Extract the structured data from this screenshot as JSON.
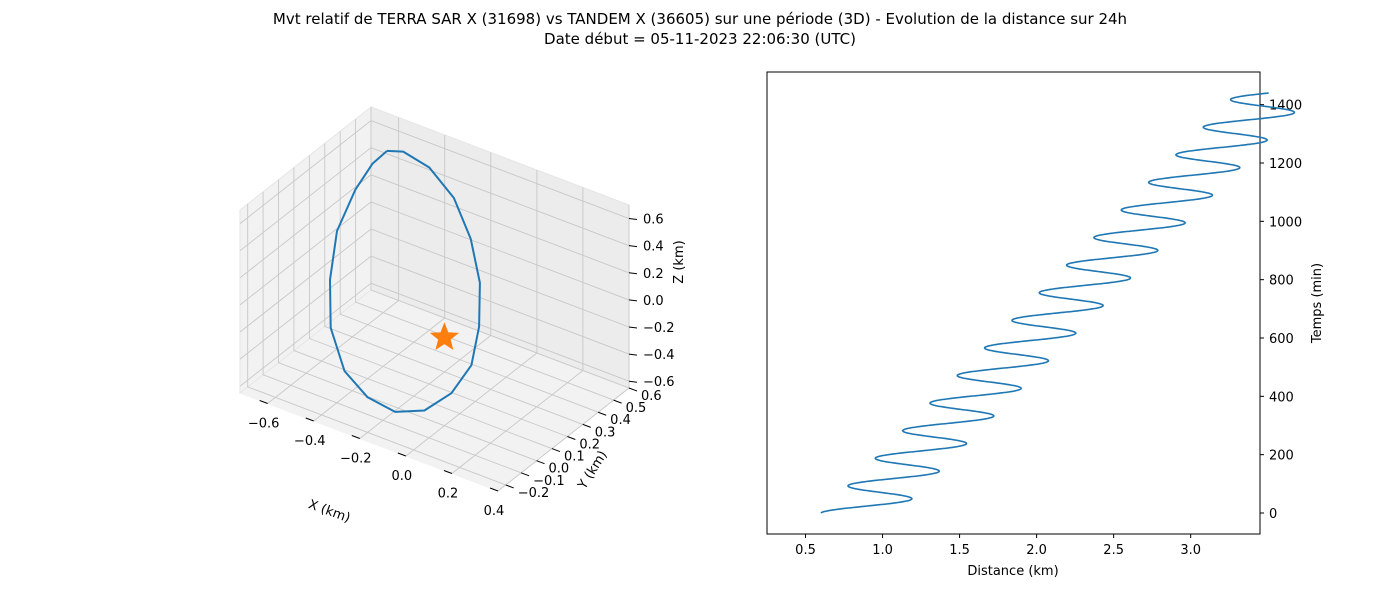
{
  "figure": {
    "title": "Mvt relatif de TERRA SAR X (31698) vs TANDEM X (36605) sur une période (3D) - Evolution de la distance sur 24h",
    "subtitle": "Date début = 05-11-2023 22:06:30 (UTC)"
  },
  "chart_data": [
    {
      "type": "line3d",
      "xlabel": "X (km)",
      "ylabel": "Y (km)",
      "zlabel": "Z (km)",
      "xlim": [
        -0.72,
        0.4
      ],
      "ylim": [
        -0.25,
        0.6
      ],
      "zlim": [
        -0.65,
        0.7
      ],
      "x_ticks": [
        "−0.6",
        "−0.4",
        "−0.2",
        "0.0",
        "0.2",
        "0.4"
      ],
      "y_ticks": [
        "−0.2",
        "−0.1",
        "0.0",
        "0.1",
        "0.2",
        "0.3",
        "0.4",
        "0.5",
        "0.6"
      ],
      "z_ticks": [
        "−0.6",
        "−0.4",
        "−0.2",
        "0.0",
        "0.2",
        "0.4",
        "0.6"
      ],
      "grid": true,
      "series": [
        {
          "color": "#1f77b4",
          "orbit_points": [
            [
              -0.55,
              0.45,
              0.62
            ],
            [
              -0.5,
              0.48,
              0.62
            ],
            [
              -0.4,
              0.5,
              0.55
            ],
            [
              -0.28,
              0.48,
              0.42
            ],
            [
              -0.18,
              0.44,
              0.22
            ],
            [
              -0.1,
              0.38,
              0.0
            ],
            [
              -0.05,
              0.3,
              -0.22
            ],
            [
              -0.03,
              0.22,
              -0.42
            ],
            [
              -0.05,
              0.12,
              -0.55
            ],
            [
              -0.1,
              0.02,
              -0.62
            ],
            [
              -0.18,
              -0.05,
              -0.62
            ],
            [
              -0.28,
              -0.08,
              -0.55
            ],
            [
              -0.38,
              -0.08,
              -0.42
            ],
            [
              -0.48,
              -0.02,
              -0.22
            ],
            [
              -0.55,
              0.08,
              0.0
            ],
            [
              -0.6,
              0.2,
              0.22
            ],
            [
              -0.6,
              0.32,
              0.42
            ],
            [
              -0.58,
              0.4,
              0.55
            ],
            [
              -0.55,
              0.45,
              0.62
            ]
          ]
        }
      ],
      "marker": {
        "shape": "star",
        "color": "#ff7f0e",
        "x": 0.0,
        "y": 0.0,
        "z": 0.0
      }
    },
    {
      "type": "line",
      "xlabel": "Distance (km)",
      "ylabel": "Temps (min)",
      "xlim": [
        0.25,
        3.45
      ],
      "ylim": [
        -72,
        1512
      ],
      "x_ticks": [
        0.5,
        1.0,
        1.5,
        2.0,
        2.5,
        3.0
      ],
      "y_ticks": [
        0,
        200,
        400,
        600,
        800,
        1000,
        1200,
        1400
      ],
      "x_tick_labels": [
        "0.5",
        "1.0",
        "1.5",
        "2.0",
        "2.5",
        "3.0"
      ],
      "y_tick_labels": [
        "0",
        "200",
        "400",
        "600",
        "800",
        "1000",
        "1200",
        "1400"
      ],
      "yaxis_side": "right",
      "grid": false,
      "series": [
        {
          "color": "#1f77b4",
          "t_range": [
            0,
            1440
          ],
          "distance_start": 0.6,
          "distance_end": 3.3,
          "oscillation_amplitude": 0.25,
          "period_min": 94.6,
          "phase": -1.57
        }
      ]
    }
  ]
}
